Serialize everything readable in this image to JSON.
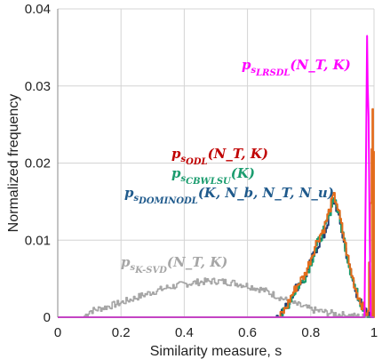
{
  "chart_data": {
    "type": "line",
    "title": "",
    "xlabel": "Similarity measure, s",
    "ylabel": "Normalized frequency",
    "xlim": [
      0,
      1
    ],
    "ylim": [
      0,
      0.04
    ],
    "x_ticks": [
      "0",
      "0.2",
      "0.4",
      "0.6",
      "0.8",
      "1"
    ],
    "y_ticks": [
      "0",
      "0.01",
      "0.02",
      "0.03",
      "0.04"
    ],
    "grid": true,
    "legend": "none (inline annotations)",
    "series": [
      {
        "name": "p_{s_{K-SVD}}(N_T, K)",
        "color": "#a6a6a6",
        "x": [
          0.08,
          0.1,
          0.15,
          0.2,
          0.25,
          0.3,
          0.35,
          0.4,
          0.45,
          0.5,
          0.55,
          0.6,
          0.65,
          0.7,
          0.75,
          0.8,
          0.85,
          0.9,
          0.95,
          0.98
        ],
        "y": [
          0.0,
          0.0008,
          0.0013,
          0.0019,
          0.0026,
          0.0033,
          0.0039,
          0.0043,
          0.0046,
          0.0047,
          0.0045,
          0.0041,
          0.0035,
          0.0026,
          0.0017,
          0.001,
          0.0006,
          0.0003,
          0.0001,
          0.0
        ]
      },
      {
        "name": "p_{s_{DOMINODL}}(K, N_b, N_T, N_u)",
        "color": "#1f3b73",
        "x": [
          0.0,
          0.68,
          0.7,
          0.72,
          0.74,
          0.76,
          0.78,
          0.8,
          0.82,
          0.84,
          0.86,
          0.87,
          0.88,
          0.9,
          0.92,
          0.94,
          0.96,
          0.98,
          1.0
        ],
        "y": [
          0.0,
          0.0,
          0.0003,
          0.0013,
          0.0031,
          0.0043,
          0.0052,
          0.0073,
          0.0093,
          0.0106,
          0.0135,
          0.0152,
          0.0142,
          0.0105,
          0.0065,
          0.0035,
          0.0014,
          0.0002,
          0.0
        ]
      },
      {
        "name": "p_{s_{CBWLSU}}(K)",
        "color": "#1a9c6e",
        "x": [
          0.0,
          0.7,
          0.72,
          0.74,
          0.76,
          0.78,
          0.8,
          0.82,
          0.84,
          0.86,
          0.87,
          0.88,
          0.9,
          0.92,
          0.94,
          0.96,
          0.98,
          1.0
        ],
        "y": [
          0.0,
          0.0,
          0.001,
          0.0028,
          0.0041,
          0.0052,
          0.0072,
          0.0096,
          0.0112,
          0.0138,
          0.0157,
          0.0146,
          0.0108,
          0.0067,
          0.0036,
          0.0015,
          0.0002,
          0.0
        ]
      },
      {
        "name": "p_{s_{SODL}}(N_T, K)",
        "color": "#e36c1c",
        "x": [
          0.0,
          0.7,
          0.72,
          0.74,
          0.76,
          0.78,
          0.8,
          0.82,
          0.84,
          0.86,
          0.87,
          0.88,
          0.9,
          0.92,
          0.94,
          0.96,
          0.98,
          0.995,
          1.0
        ],
        "y": [
          0.0,
          0.0,
          0.0012,
          0.003,
          0.0044,
          0.0055,
          0.0078,
          0.0101,
          0.0115,
          0.0142,
          0.0158,
          0.0149,
          0.011,
          0.0068,
          0.0037,
          0.0016,
          0.0003,
          0.027,
          0.0
        ]
      },
      {
        "name": "p_{s_{LRSDL}}(N_T, K)",
        "color": "#ff00ff",
        "x": [
          0.0,
          0.97,
          0.975,
          0.978,
          0.98,
          0.983,
          0.986,
          0.99,
          1.0
        ],
        "y": [
          0.0,
          0.0,
          0.022,
          0.0365,
          0.03,
          0.026,
          0.012,
          0.0,
          0.0
        ]
      }
    ],
    "annotations": [
      {
        "base": "p",
        "sub": "s",
        "subsub": "LRSDL",
        "args": "(N_T, K)",
        "color": "#ff00ff"
      },
      {
        "base": "p",
        "sub": "s",
        "subsub": "ODL",
        "args": "(N_T, K)",
        "color": "#c00000"
      },
      {
        "base": "p",
        "sub": "s",
        "subsub": "CBWLSU",
        "args": "(K)",
        "color": "#1a9c6e"
      },
      {
        "base": "p",
        "sub": "s",
        "subsub": "DOMINODL",
        "args": "(K, N_b, N_T, N_u)",
        "color": "#1f5a8c"
      },
      {
        "base": "p",
        "sub": "s",
        "subsub": "K-SVD",
        "args": "(N_T, K)",
        "color": "#a6a6a6"
      }
    ]
  }
}
